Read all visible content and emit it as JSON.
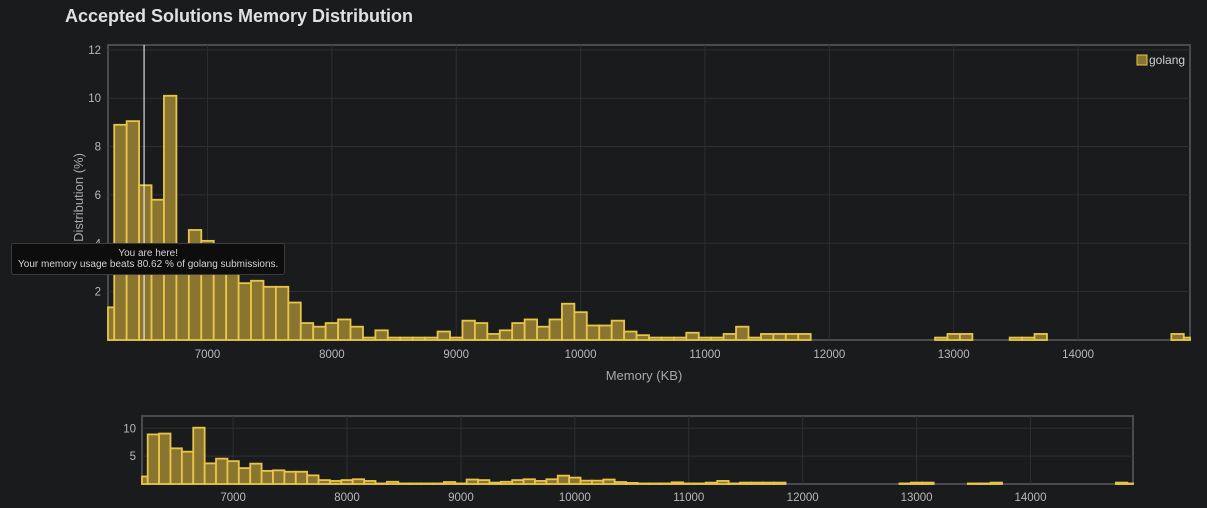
{
  "page": {
    "title": "Accepted Solutions Memory Distribution"
  },
  "tooltip": {
    "line1": "You are here!",
    "line2": "Your memory usage beats 80.62 % of golang submissions."
  },
  "colors": {
    "bar_fill": "#8a7530",
    "bar_stroke": "#e8c547",
    "background": "#1a1b1d",
    "grid": "#2e2f32",
    "marker": "#ffffff"
  },
  "chart_data": [
    {
      "type": "bar",
      "title": "Accepted Solutions Memory Distribution",
      "xlabel": "Memory (KB)",
      "ylabel": "Distribution (%)",
      "xlim": [
        6200,
        14900
      ],
      "ylim": [
        0,
        12.2
      ],
      "x_ticks": [
        7000,
        8000,
        9000,
        10000,
        11000,
        12000,
        13000,
        14000
      ],
      "y_ticks": [
        2,
        4,
        6,
        8,
        10,
        12
      ],
      "grid": true,
      "legend": {
        "position": "top-right",
        "entries": [
          "golang"
        ]
      },
      "bin_width": 100,
      "series": [
        {
          "name": "golang",
          "x": [
            6200,
            6300,
            6400,
            6500,
            6600,
            6700,
            6800,
            6900,
            7000,
            7100,
            7200,
            7300,
            7400,
            7500,
            7600,
            7700,
            7800,
            7900,
            8000,
            8100,
            8200,
            8300,
            8400,
            8500,
            8600,
            8700,
            8800,
            8900,
            9000,
            9100,
            9200,
            9300,
            9400,
            9500,
            9600,
            9700,
            9800,
            9900,
            10000,
            10100,
            10200,
            10300,
            10400,
            10500,
            10600,
            10700,
            10800,
            10900,
            11000,
            11100,
            11200,
            11300,
            11400,
            11500,
            11600,
            11700,
            11800,
            12900,
            13000,
            13100,
            13500,
            13600,
            13700,
            14800,
            14900
          ],
          "values": [
            1.35,
            8.9,
            9.05,
            6.4,
            5.8,
            10.1,
            3.7,
            4.55,
            4.1,
            2.85,
            3.65,
            2.35,
            2.45,
            2.2,
            2.2,
            1.55,
            0.7,
            0.55,
            0.7,
            0.85,
            0.55,
            0.1,
            0.4,
            0.1,
            0.1,
            0.1,
            0.1,
            0.35,
            0.1,
            0.8,
            0.7,
            0.25,
            0.4,
            0.7,
            0.85,
            0.55,
            0.85,
            1.5,
            1.15,
            0.6,
            0.6,
            0.8,
            0.35,
            0.2,
            0.1,
            0.1,
            0.1,
            0.3,
            0.1,
            0.1,
            0.25,
            0.55,
            0.1,
            0.25,
            0.25,
            0.25,
            0.25,
            0.1,
            0.25,
            0.25,
            0.1,
            0.1,
            0.25,
            0.25,
            0.1
          ]
        }
      ],
      "marker": {
        "x": 6490,
        "label": "You are here!"
      }
    },
    {
      "type": "bar",
      "xlim": [
        6200,
        14900
      ],
      "ylim": [
        0,
        12.2
      ],
      "x_ticks": [
        7000,
        8000,
        9000,
        10000,
        11000,
        12000,
        13000,
        14000
      ],
      "y_ticks": [
        5,
        10
      ],
      "grid": true,
      "bin_width": 100,
      "series": [
        {
          "name": "golang",
          "x": [
            6200,
            6300,
            6400,
            6500,
            6600,
            6700,
            6800,
            6900,
            7000,
            7100,
            7200,
            7300,
            7400,
            7500,
            7600,
            7700,
            7800,
            7900,
            8000,
            8100,
            8200,
            8300,
            8400,
            8500,
            8600,
            8700,
            8800,
            8900,
            9000,
            9100,
            9200,
            9300,
            9400,
            9500,
            9600,
            9700,
            9800,
            9900,
            10000,
            10100,
            10200,
            10300,
            10400,
            10500,
            10600,
            10700,
            10800,
            10900,
            11000,
            11100,
            11200,
            11300,
            11400,
            11500,
            11600,
            11700,
            11800,
            12900,
            13000,
            13100,
            13500,
            13600,
            13700,
            14800,
            14900
          ],
          "values": [
            1.35,
            8.9,
            9.05,
            6.4,
            5.8,
            10.1,
            3.7,
            4.55,
            4.1,
            2.85,
            3.65,
            2.35,
            2.45,
            2.2,
            2.2,
            1.55,
            0.7,
            0.55,
            0.7,
            0.85,
            0.55,
            0.1,
            0.4,
            0.1,
            0.1,
            0.1,
            0.1,
            0.35,
            0.1,
            0.8,
            0.7,
            0.25,
            0.4,
            0.7,
            0.85,
            0.55,
            0.85,
            1.5,
            1.15,
            0.6,
            0.6,
            0.8,
            0.35,
            0.2,
            0.1,
            0.1,
            0.1,
            0.3,
            0.1,
            0.1,
            0.25,
            0.55,
            0.1,
            0.25,
            0.25,
            0.25,
            0.25,
            0.1,
            0.25,
            0.25,
            0.1,
            0.1,
            0.25,
            0.25,
            0.1
          ]
        }
      ]
    }
  ]
}
